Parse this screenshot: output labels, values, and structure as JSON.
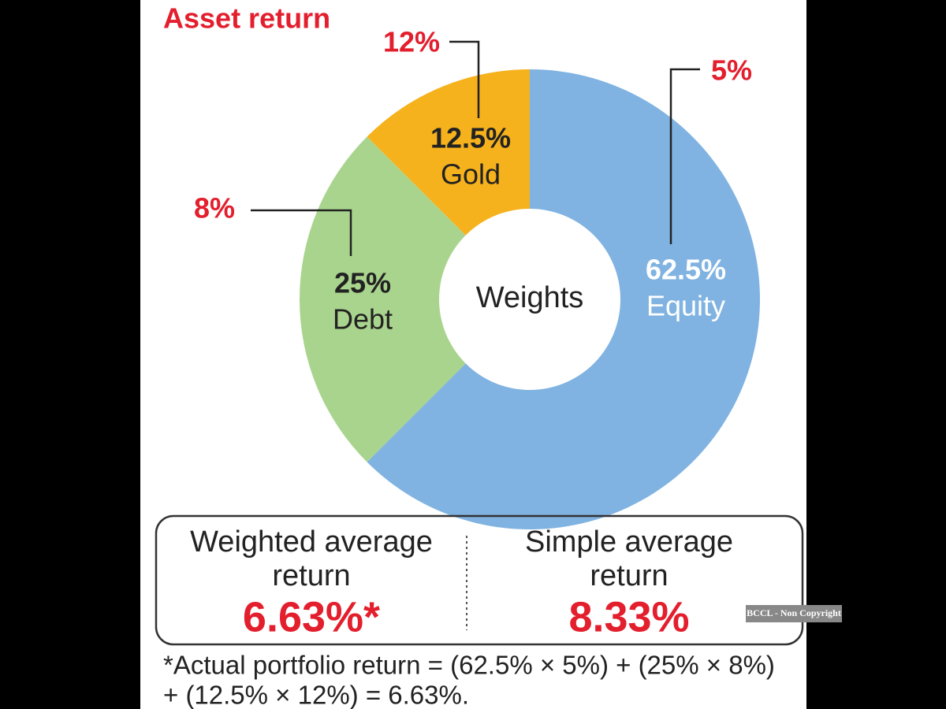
{
  "chart_data": {
    "type": "pie",
    "title": "Asset return",
    "center_label": "Weights",
    "categories": [
      "Equity",
      "Debt",
      "Gold"
    ],
    "values": [
      62.5,
      25,
      12.5
    ],
    "value_labels": [
      "62.5%",
      "25%",
      "12.5%"
    ],
    "colors": [
      "#80b3e1",
      "#a9d48d",
      "#f6b21d"
    ],
    "return_labels": [
      "5%",
      "8%",
      "12%"
    ]
  },
  "summary": [
    {
      "label_lines": [
        "Weighted average",
        "return"
      ],
      "value_label": "6.63%*"
    },
    {
      "label_lines": [
        "Simple average",
        "return"
      ],
      "value_label": "8.33%"
    }
  ],
  "footnote_lines": [
    "*Actual portfolio return = (62.5% × 5%) + (25% × 8%)",
    "+ (12.5% × 12%) = 6.63%."
  ],
  "watermark": "BCCL - Non Copyright"
}
